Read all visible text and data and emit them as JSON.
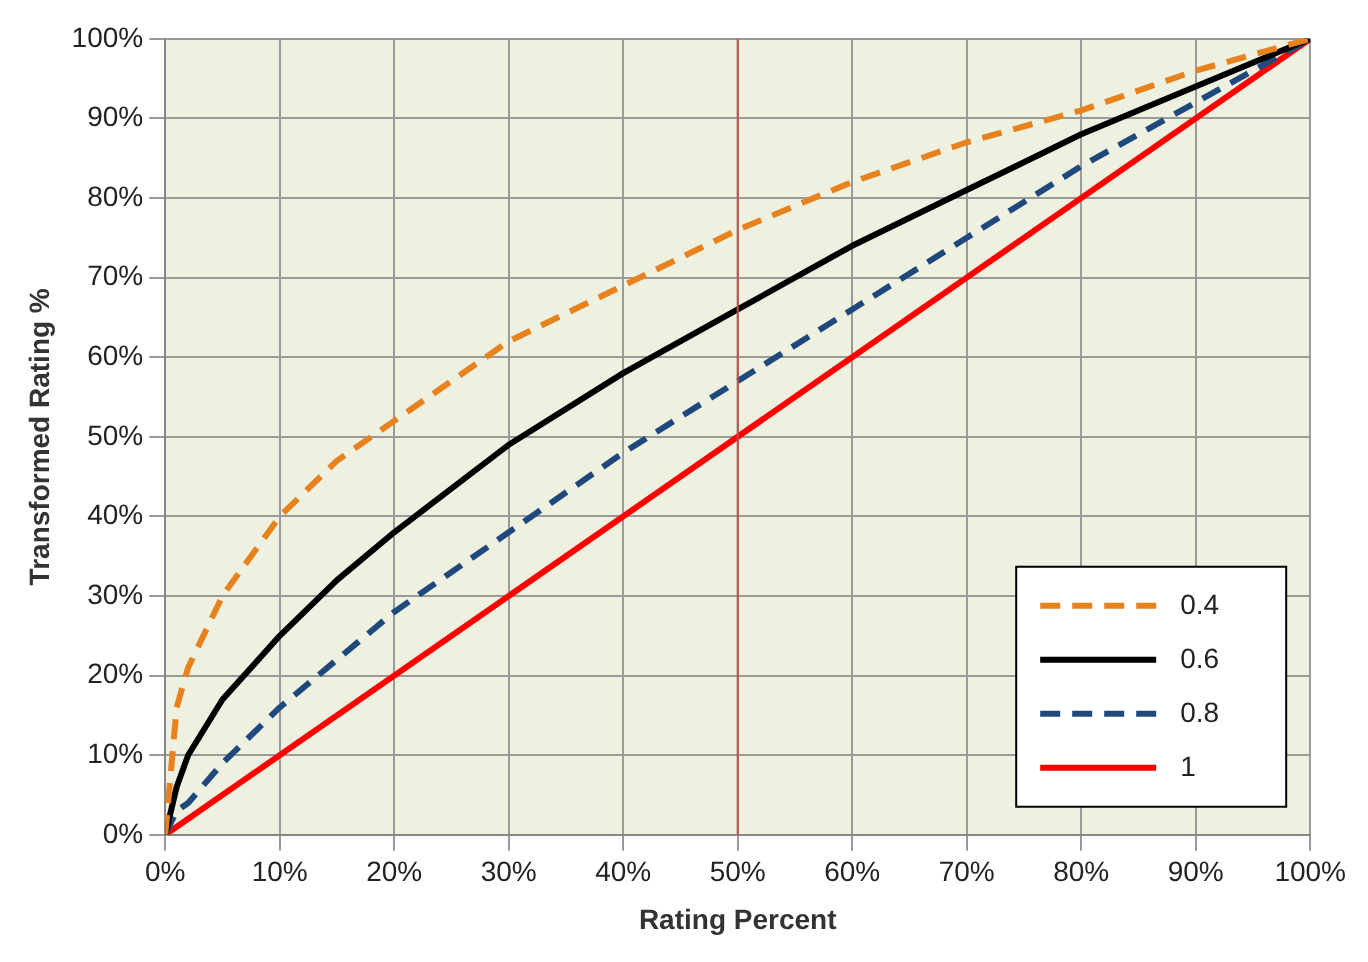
{
  "chart_data": {
    "type": "line",
    "xlabel": "Rating Percent",
    "ylabel": "Transformed Rating %",
    "xlim": [
      0,
      100
    ],
    "ylim": [
      0,
      100
    ],
    "xticks": [
      {
        "value": 0,
        "label": "0%"
      },
      {
        "value": 10,
        "label": "10%"
      },
      {
        "value": 20,
        "label": "20%"
      },
      {
        "value": 30,
        "label": "30%"
      },
      {
        "value": 40,
        "label": "40%"
      },
      {
        "value": 50,
        "label": "50%"
      },
      {
        "value": 60,
        "label": "60%"
      },
      {
        "value": 70,
        "label": "70%"
      },
      {
        "value": 80,
        "label": "80%"
      },
      {
        "value": 90,
        "label": "90%"
      },
      {
        "value": 100,
        "label": "100%"
      }
    ],
    "yticks": [
      {
        "value": 0,
        "label": "0%"
      },
      {
        "value": 10,
        "label": "10%"
      },
      {
        "value": 20,
        "label": "20%"
      },
      {
        "value": 30,
        "label": "30%"
      },
      {
        "value": 40,
        "label": "40%"
      },
      {
        "value": 50,
        "label": "50%"
      },
      {
        "value": 60,
        "label": "60%"
      },
      {
        "value": 70,
        "label": "70%"
      },
      {
        "value": 80,
        "label": "80%"
      },
      {
        "value": 90,
        "label": "90%"
      },
      {
        "value": 100,
        "label": "100%"
      }
    ],
    "x": [
      0,
      1,
      2,
      5,
      10,
      15,
      20,
      30,
      40,
      50,
      60,
      70,
      80,
      90,
      100
    ],
    "series": [
      {
        "name": "0.4",
        "color": "#e8821e",
        "line_style": "dashed",
        "values": [
          0,
          16,
          21,
          30,
          40,
          47,
          52,
          62,
          69,
          76,
          82,
          87,
          91,
          96,
          100
        ]
      },
      {
        "name": "0.6",
        "color": "#000000",
        "line_style": "solid",
        "values": [
          0,
          6,
          10,
          17,
          25,
          32,
          38,
          49,
          58,
          66,
          74,
          81,
          88,
          94,
          100
        ]
      },
      {
        "name": "0.8",
        "color": "#1f497d",
        "line_style": "dashed",
        "values": [
          0,
          3,
          4,
          9,
          16,
          22,
          28,
          38,
          48,
          57,
          66,
          75,
          84,
          92,
          100
        ]
      },
      {
        "name": "1",
        "color": "#ff0000",
        "line_style": "solid",
        "x": [
          0,
          100
        ],
        "values": [
          0,
          100
        ]
      }
    ],
    "ref_lines": [
      {
        "axis": "x",
        "value": 50,
        "color": "#c0504d"
      }
    ],
    "grid": true,
    "legend": "bottom right",
    "marker": "none"
  }
}
